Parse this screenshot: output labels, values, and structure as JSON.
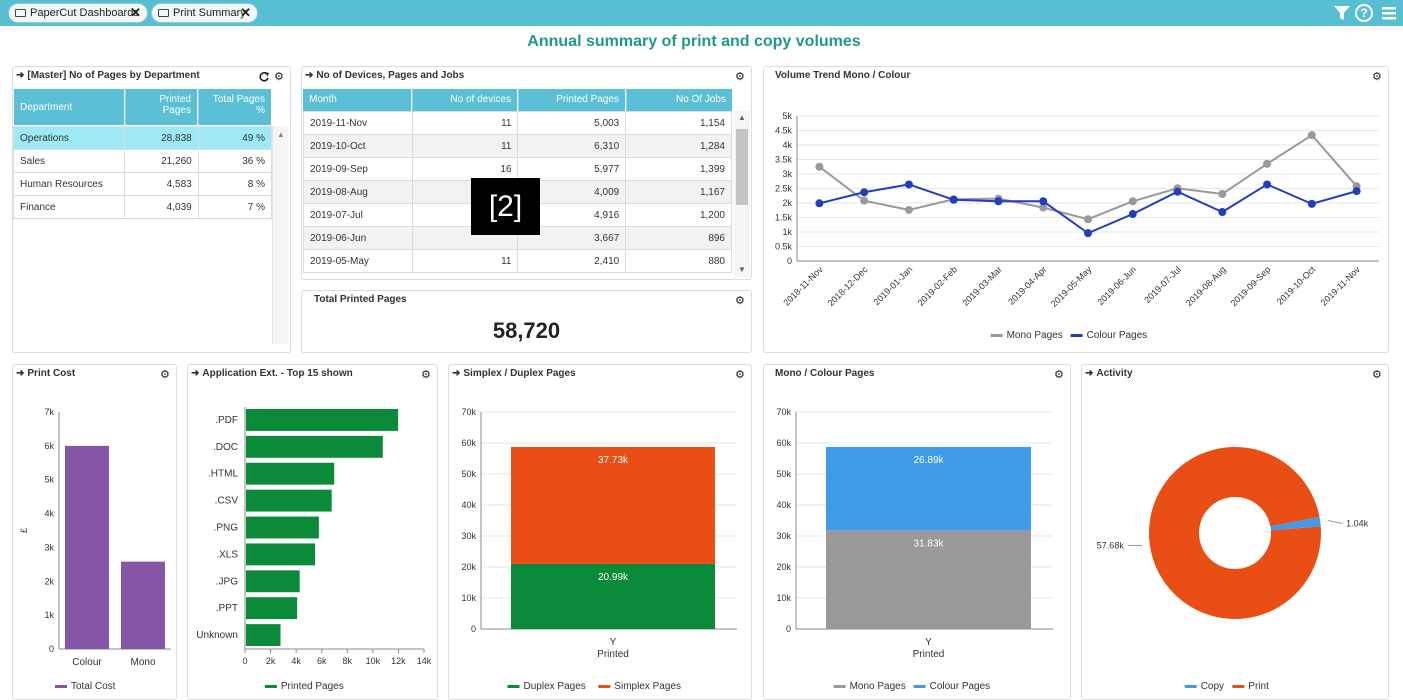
{
  "tabs": [
    {
      "label": "PaperCut Dashboards"
    },
    {
      "label": "Print Summary"
    }
  ],
  "toolbar_icons": [
    "filter-icon",
    "help-icon",
    "menu-icon"
  ],
  "dashboard_title": "Annual summary of print and copy volumes",
  "dept": {
    "title": "[Master] No of Pages by Department",
    "headers": [
      "Department",
      "Printed Pages",
      "Total Pages %"
    ],
    "rows": [
      [
        "Operations",
        "28,838",
        "49 %"
      ],
      [
        "Sales",
        "21,260",
        "36 %"
      ],
      [
        "Human Resources",
        "4,583",
        "8 %"
      ],
      [
        "Finance",
        "4,039",
        "7 %"
      ]
    ],
    "selected_row": 0
  },
  "devices": {
    "title": "No of Devices, Pages and Jobs",
    "headers": [
      "Month",
      "No of devices",
      "Printed Pages",
      "No Of Jobs"
    ],
    "rows": [
      [
        "2019-11-Nov",
        "11",
        "5,003",
        "1,154"
      ],
      [
        "2019-10-Oct",
        "11",
        "6,310",
        "1,284"
      ],
      [
        "2019-09-Sep",
        "16",
        "5,977",
        "1,399"
      ],
      [
        "2019-08-Aug",
        "",
        "4,009",
        "1,167"
      ],
      [
        "2019-07-Jul",
        "",
        "4,916",
        "1,200"
      ],
      [
        "2019-06-Jun",
        "",
        "3,667",
        "896"
      ],
      [
        "2019-05-May",
        "11",
        "2,410",
        "880"
      ]
    ]
  },
  "overlay_badge": "[2]",
  "total_pages": {
    "title": "Total Printed Pages",
    "value": "58,720"
  },
  "charts": {
    "trend": {
      "title": "Volume Trend Mono / Colour"
    },
    "cost": {
      "title": "Print Cost"
    },
    "app": {
      "title": "Application Ext. - Top 15 shown"
    },
    "simplex": {
      "title": "Simplex / Duplex Pages"
    },
    "monocolour": {
      "title": "Mono / Colour Pages"
    },
    "activity": {
      "title": "Activity"
    }
  },
  "chart_data": [
    {
      "id": "trend",
      "type": "line",
      "x": [
        "2018-11-Nov",
        "2018-12-Dec",
        "2019-01-Jan",
        "2019-02-Feb",
        "2019-03-Mar",
        "2019-04-Apr",
        "2019-05-May",
        "2019-06-Jun",
        "2019-07-Jul",
        "2019-08-Aug",
        "2019-09-Sep",
        "2019-10-Oct",
        "2019-11-Nov"
      ],
      "series": [
        {
          "name": "Mono Pages",
          "color": "#999999",
          "values": [
            3250,
            2080,
            1760,
            2130,
            2150,
            1840,
            1440,
            2060,
            2510,
            2310,
            3350,
            4340,
            2580
          ]
        },
        {
          "name": "Colour Pages",
          "color": "#1f3fbf",
          "values": [
            1990,
            2370,
            2640,
            2110,
            2060,
            2060,
            960,
            1620,
            2390,
            1690,
            2640,
            1970,
            2410
          ]
        }
      ],
      "yticks": [
        "0",
        "0.5k",
        "1k",
        "1.5k",
        "2k",
        "2.5k",
        "3k",
        "3.5k",
        "4k",
        "4.5k",
        "5k"
      ],
      "ylim": [
        0,
        5000
      ],
      "legend": "bottom"
    },
    {
      "id": "cost",
      "type": "bar",
      "categories": [
        "Colour",
        "Mono"
      ],
      "series": [
        {
          "name": "Total Cost",
          "color": "#8656a6",
          "values": [
            6000,
            2580
          ]
        }
      ],
      "ylabel": "£",
      "yticks": [
        "0",
        "1k",
        "2k",
        "3k",
        "4k",
        "5k",
        "6k",
        "7k"
      ],
      "ylim": [
        0,
        7000
      ],
      "legend": "bottom"
    },
    {
      "id": "app",
      "type": "bar",
      "orientation": "horizontal",
      "categories": [
        ".PDF",
        ".DOC",
        ".HTML",
        ".CSV",
        ".PNG",
        ".XLS",
        ".JPG",
        ".PPT",
        "Unknown"
      ],
      "series": [
        {
          "name": "Printed Pages",
          "color": "#0b8a3a",
          "values": [
            11900,
            10700,
            6900,
            6700,
            5700,
            5400,
            4200,
            4000,
            2700
          ]
        }
      ],
      "xticks": [
        "0",
        "2k",
        "4k",
        "6k",
        "8k",
        "10k",
        "12k",
        "14k"
      ],
      "xlim": [
        0,
        14000
      ],
      "legend": "bottom"
    },
    {
      "id": "simplex",
      "type": "bar",
      "stacked": true,
      "categories": [
        "Y"
      ],
      "xlabel": "Printed",
      "series": [
        {
          "name": "Duplex Pages",
          "color": "#0b8a3a",
          "values": [
            20990
          ],
          "label": "20.99k"
        },
        {
          "name": "Simplex Pages",
          "color": "#e94e15",
          "values": [
            37730
          ],
          "label": "37.73k"
        }
      ],
      "yticks": [
        "0",
        "10k",
        "20k",
        "30k",
        "40k",
        "50k",
        "60k",
        "70k"
      ],
      "ylim": [
        0,
        70000
      ],
      "legend": "bottom"
    },
    {
      "id": "monocolour",
      "type": "bar",
      "stacked": true,
      "categories": [
        "Y"
      ],
      "xlabel": "Printed",
      "series": [
        {
          "name": "Mono Pages",
          "color": "#999999",
          "values": [
            31830
          ],
          "label": "31.83k"
        },
        {
          "name": "Colour Pages",
          "color": "#3f9ae8",
          "values": [
            26890
          ],
          "label": "26.89k"
        }
      ],
      "yticks": [
        "0",
        "10k",
        "20k",
        "30k",
        "40k",
        "50k",
        "60k",
        "70k"
      ],
      "ylim": [
        0,
        70000
      ],
      "legend": "bottom"
    },
    {
      "id": "activity",
      "type": "pie",
      "donut": true,
      "series": [
        {
          "name": "Copy",
          "color": "#3f9ae8",
          "values": [
            1040
          ],
          "label": "1.04k"
        },
        {
          "name": "Print",
          "color": "#e94e15",
          "values": [
            57680
          ],
          "label": "57.68k"
        }
      ],
      "legend": "bottom"
    }
  ]
}
